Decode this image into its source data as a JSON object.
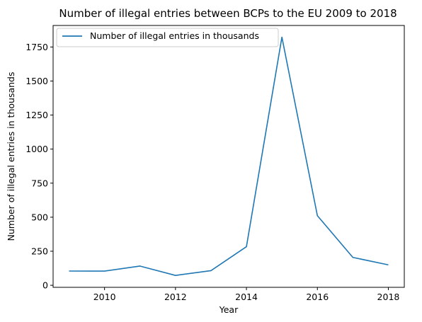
{
  "chart_data": {
    "type": "line",
    "title": "Number of illegal entries between BCPs to the EU 2009 to 2018",
    "xlabel": "Year",
    "ylabel": "Number of illegal entries in thousands",
    "x": [
      2009,
      2010,
      2011,
      2012,
      2013,
      2014,
      2015,
      2016,
      2017,
      2018
    ],
    "series": [
      {
        "name": "Number of illegal entries in thousands",
        "color": "#1f77b4",
        "values": [
          104.6,
          104.1,
          141.1,
          72.4,
          107.4,
          283.5,
          1822.2,
          511.1,
          204.7,
          150.1
        ]
      }
    ],
    "xticks": [
      2010,
      2012,
      2014,
      2016,
      2018
    ],
    "yticks": [
      0,
      250,
      500,
      750,
      1000,
      1250,
      1500,
      1750
    ],
    "xlim": [
      2008.55,
      2018.45
    ],
    "ylim": [
      -15,
      1908
    ],
    "legend_position": "top-left",
    "grid": false
  }
}
